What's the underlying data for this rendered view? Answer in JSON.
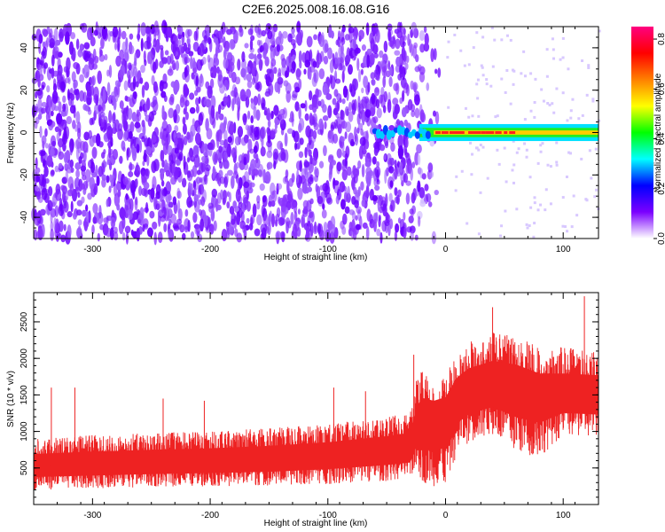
{
  "title": "C2E6.2025.008.16.08.G16",
  "chart_data": [
    {
      "type": "heatmap",
      "xlabel": "Height of straight line (km)",
      "ylabel": "Frequency (Hz)",
      "xlim": [
        -350,
        130
      ],
      "ylim": [
        -50,
        50
      ],
      "x_ticks": [
        -300,
        -200,
        -100,
        0,
        100
      ],
      "x_tick_labels": [
        "-300",
        "-200",
        "-100",
        "0",
        "100"
      ],
      "y_ticks": [
        -40,
        -20,
        0,
        20,
        40
      ],
      "y_tick_labels": [
        "-40",
        "-20",
        "0",
        "20",
        "40"
      ],
      "colorbar": {
        "label": "Normalized spectral amplitude",
        "range": [
          0.0,
          0.85
        ],
        "ticks": [
          0.0,
          0.2,
          0.4,
          0.6,
          0.8
        ],
        "tick_labels": [
          "0.0",
          "0.2",
          "0.4",
          "0.6",
          "0.8"
        ],
        "colormap": [
          "#ffffff",
          "#7b00ff",
          "#0000ff",
          "#00ffff",
          "#00ff00",
          "#ffff00",
          "#ff8000",
          "#ff0000",
          "#ff0080"
        ]
      },
      "features": [
        {
          "x_range": [
            -350,
            -40
          ],
          "freq_range": [
            -50,
            50
          ],
          "amplitude": 0.05,
          "description": "broadband noise"
        },
        {
          "x_range": [
            -60,
            130
          ],
          "freq_center": 0,
          "freq_halfwidth": 4,
          "amplitude": 0.3
        },
        {
          "x_range": [
            -10,
            130
          ],
          "freq_center": 0,
          "freq_halfwidth": 1,
          "amplitude": 0.8
        }
      ],
      "grid": false
    },
    {
      "type": "line",
      "xlabel": "Height of straight line (km)",
      "ylabel": "SNR (10 * v/v)",
      "xlim": [
        -350,
        130
      ],
      "ylim": [
        0,
        2900
      ],
      "x_ticks": [
        -300,
        -200,
        -100,
        0,
        100
      ],
      "x_tick_labels": [
        "-300",
        "-200",
        "-100",
        "0",
        "100"
      ],
      "y_ticks": [
        500,
        1000,
        1500,
        2000,
        2500
      ],
      "y_tick_labels": [
        "500",
        "1000",
        "1500",
        "2000",
        "2500"
      ],
      "series": [
        {
          "color": "#ee2222",
          "x": [
            -350,
            -300,
            -250,
            -200,
            -150,
            -100,
            -50,
            -30,
            -25,
            -20,
            -10,
            0,
            10,
            20,
            40,
            60,
            80,
            100,
            130
          ],
          "mean": [
            520,
            540,
            560,
            580,
            600,
            650,
            720,
            760,
            1000,
            1100,
            1150,
            1200,
            1450,
            1550,
            1650,
            1600,
            1500,
            1500,
            1500
          ],
          "upper_band": [
            900,
            950,
            980,
            1000,
            1050,
            1100,
            1200,
            1250,
            1700,
            1900,
            1750,
            1800,
            2100,
            2250,
            2350,
            2300,
            2150,
            2150,
            2100
          ],
          "lower_band": [
            200,
            220,
            240,
            250,
            260,
            280,
            320,
            350,
            500,
            300,
            250,
            250,
            700,
            850,
            950,
            700,
            650,
            950,
            900
          ],
          "peaks": [
            {
              "x": -335,
              "y": 1600
            },
            {
              "x": -315,
              "y": 1600
            },
            {
              "x": -240,
              "y": 1450
            },
            {
              "x": -205,
              "y": 1420
            },
            {
              "x": -95,
              "y": 1600
            },
            {
              "x": -68,
              "y": 1550
            },
            {
              "x": -27,
              "y": 2050
            },
            {
              "x": 40,
              "y": 2700
            },
            {
              "x": 118,
              "y": 2850
            }
          ]
        }
      ],
      "grid": false
    }
  ]
}
